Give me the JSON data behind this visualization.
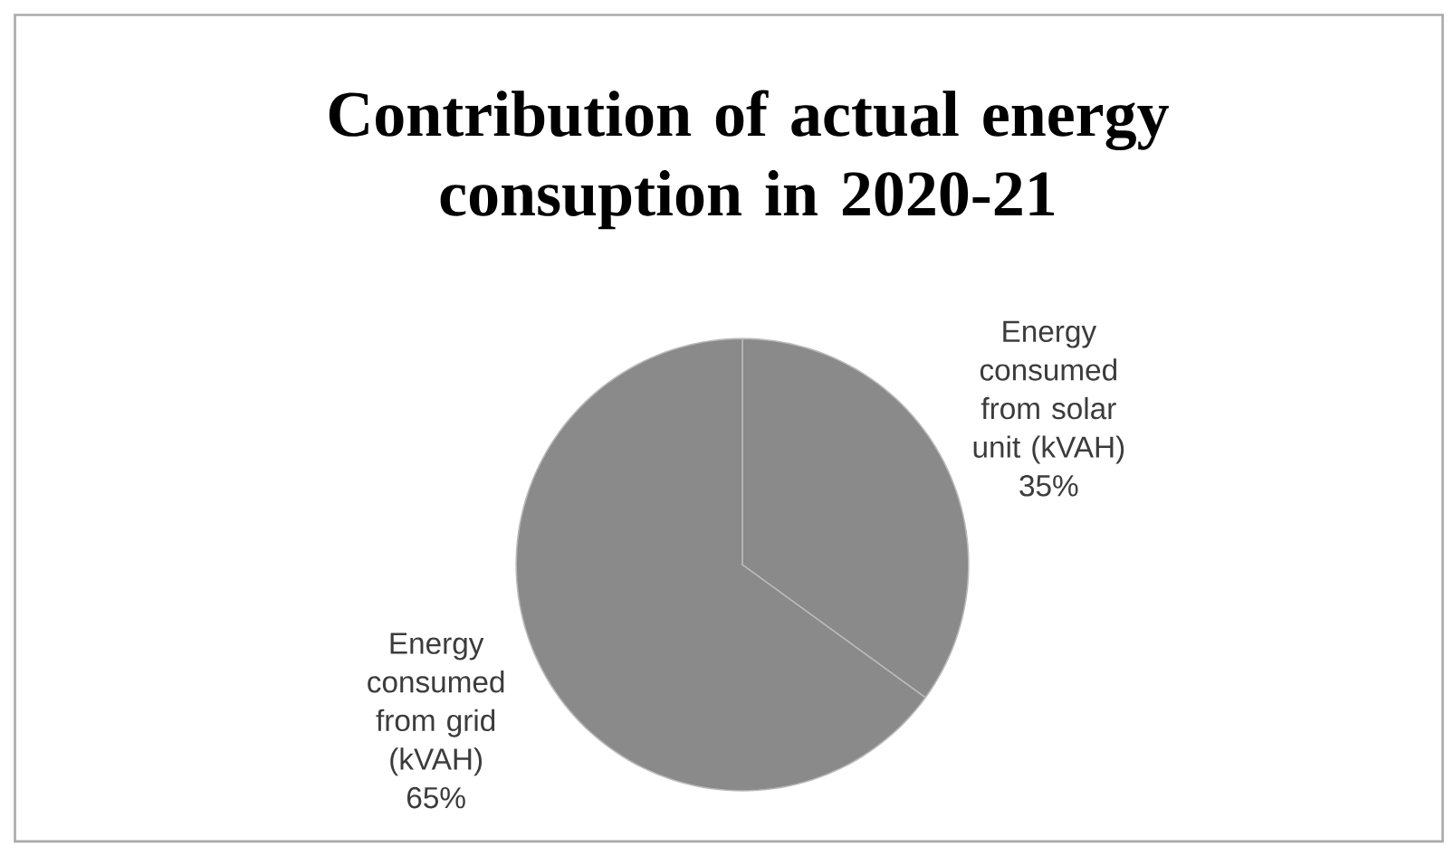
{
  "chart_data": {
    "type": "pie",
    "title": "Contribution of actual energy consuption in 2020-21",
    "categories": [
      "Energy consumed from solar unit (kVAH)",
      "Energy consumed from grid (kVAH)"
    ],
    "values": [
      35,
      65
    ],
    "value_labels": [
      "35%",
      "65%"
    ],
    "colors": [
      "#8a8a8a",
      "#8a8a8a"
    ]
  }
}
